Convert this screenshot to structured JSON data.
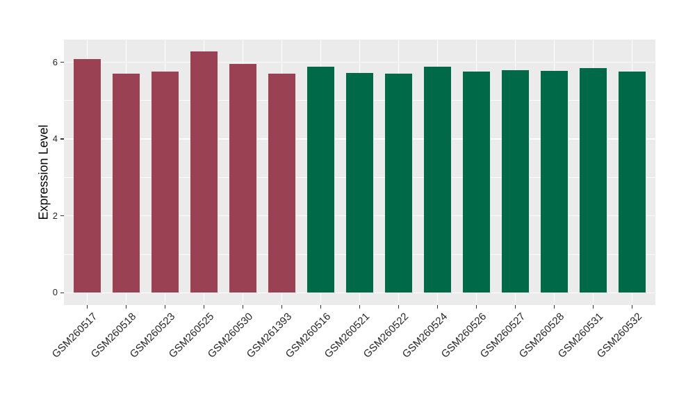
{
  "figure": {
    "background": "#ffffff",
    "panel_background": "#ebebeb",
    "grid_color": "#ffffff",
    "tick_color": "#333333",
    "axis_text_color": "#262626"
  },
  "chart_data": {
    "type": "bar",
    "title": "",
    "xlabel": "",
    "ylabel": "Expression Level",
    "categories": [
      "GSM260517",
      "GSM260518",
      "GSM260523",
      "GSM260525",
      "GSM260530",
      "GSM261393",
      "GSM260516",
      "GSM260521",
      "GSM260522",
      "GSM260524",
      "GSM260526",
      "GSM260527",
      "GSM260528",
      "GSM260531",
      "GSM260532"
    ],
    "values": [
      6.08,
      5.71,
      5.75,
      6.28,
      5.95,
      5.7,
      5.88,
      5.72,
      5.7,
      5.88,
      5.76,
      5.8,
      5.77,
      5.84,
      5.76
    ],
    "bar_groups": [
      "group1",
      "group1",
      "group1",
      "group1",
      "group1",
      "group1",
      "group2",
      "group2",
      "group2",
      "group2",
      "group2",
      "group2",
      "group2",
      "group2",
      "group2"
    ],
    "group_colors": {
      "group1": "#9A4253",
      "group2": "#006A48"
    },
    "yticks": [
      0,
      2,
      4,
      6
    ],
    "yticks_minor": [
      1,
      3,
      5
    ],
    "ylim": [
      -0.32,
      6.59
    ],
    "grid": "on",
    "legend": "none",
    "x_tick_rotation_deg": 45,
    "bar_width_fraction": 0.7
  }
}
